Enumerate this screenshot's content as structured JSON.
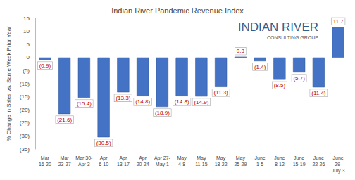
{
  "chart_data": {
    "type": "bar",
    "title": "Indian River Pandemic Revenue Index",
    "y_label": "% Change in Sales vs. Same Week Prior Year",
    "annotations": [
      "INDIAN RIVER",
      "CONSULTING GROUP"
    ],
    "categories": [
      "Mar\n16-20",
      "Mar\n23-27",
      "Mar 30-\nApr 3",
      "Apr\n6-10",
      "Apr\n13-17",
      "Apr\n20-24",
      "Apr 27-\nMay 1",
      "May\n4-8",
      "May\n11-15",
      "May\n18-22",
      "May\n25-29",
      "June\n1-5",
      "June\n8-12",
      "June\n15-19",
      "June\n22-26",
      "June\n29-\nJuly 3"
    ],
    "values": [
      -0.9,
      -21.6,
      -15.4,
      -30.5,
      -13.3,
      -14.8,
      -18.9,
      -14.8,
      -14.9,
      -11.3,
      0.3,
      -1.4,
      -8.5,
      -5.7,
      -11.4,
      11.7
    ],
    "value_labels": [
      "(0.9)",
      "(21.6)",
      "(15.4)",
      "(30.5)",
      "(13.3)",
      "(14.8)",
      "(18.9)",
      "(14.8)",
      "(14.9)",
      "(11.3)",
      "0.3",
      "(1.4)",
      "(8.5)",
      "(5.7)",
      "(11.4)",
      "11.7"
    ],
    "color": "#4472c4",
    "data_labels": true,
    "grid": false,
    "ylim": [
      -35,
      15
    ],
    "yticks": [
      {
        "value": -35,
        "label": "(35)"
      },
      {
        "value": -30,
        "label": "(30)"
      },
      {
        "value": -25,
        "label": "(25)"
      },
      {
        "value": -20,
        "label": "(20)"
      },
      {
        "value": -15,
        "label": "(15)"
      },
      {
        "value": -10,
        "label": "(10)"
      },
      {
        "value": -5,
        "label": "(5)"
      },
      0,
      5,
      10,
      15
    ]
  }
}
